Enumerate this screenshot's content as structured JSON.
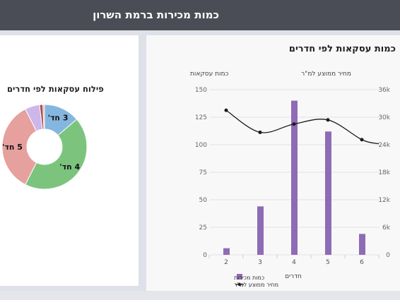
{
  "header": {
    "title": "כמות מכירות ברמת השרון"
  },
  "pie_panel": {
    "title": "פילוח עסקאות לפי חדרים"
  },
  "bar_panel": {
    "title": "כמות עסקאות לפי חדרים"
  },
  "colors": {
    "header_bg": "#4a4d55",
    "bars": "#8e6bb6",
    "line": "#1a1a1a",
    "pie_3": "#85b6df",
    "pie_4": "#7cc47e",
    "pie_5": "#e6a09e",
    "pie_6": "#cdb6ea",
    "pie_small_a": "#a85252",
    "pie_small_b": "#e6a09e"
  },
  "chart_data": [
    {
      "type": "pie",
      "title": "פילוח עסקאות לפי חדרים",
      "donut": true,
      "slices": [
        {
          "label": "3 חד'",
          "value": 44,
          "color": "#85b6df"
        },
        {
          "label": "4 חד'",
          "value": 140,
          "color": "#7cc47e"
        },
        {
          "label": "5 חד'",
          "value": 112,
          "color": "#e6a09e"
        },
        {
          "label": "",
          "value": 18,
          "color": "#cdb6ea"
        },
        {
          "label": "",
          "value": 4,
          "color": "#a85252"
        },
        {
          "label": "",
          "value": 2,
          "color": "#e6a09e"
        }
      ]
    },
    {
      "type": "bar",
      "title": "כמות עסקאות לפי חדרים",
      "xlabel": "חדרים",
      "ylabel": "כמות עסקאות",
      "y2label": "מחיר ממוצע למ\"ר",
      "categories": [
        "2",
        "3",
        "4",
        "5",
        "6"
      ],
      "ylim": [
        0,
        150
      ],
      "y_ticks": [
        "0",
        "25",
        "50",
        "75",
        "100",
        "125",
        "150"
      ],
      "y2lim": [
        0,
        36000
      ],
      "y2_ticks": [
        "0",
        "6k",
        "12k",
        "18k",
        "24k",
        "30k",
        "36k"
      ],
      "series": [
        {
          "name": "כמות מכירות",
          "kind": "bar",
          "axis": "left",
          "values": [
            6,
            44,
            140,
            112,
            19
          ]
        },
        {
          "name": "מחיר ממוצע למ\"ר",
          "kind": "line",
          "axis": "right",
          "values": [
            31500,
            26700,
            28500,
            29400,
            25100
          ],
          "end_value": 24200
        }
      ],
      "legend": "bottom-left",
      "grid": true
    }
  ]
}
